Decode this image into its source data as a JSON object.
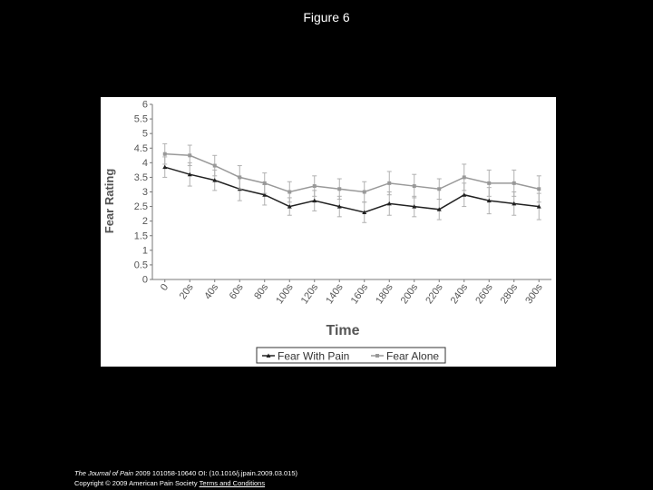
{
  "figure_title": "Figure 6",
  "chart_data": {
    "type": "line",
    "xlabel": "Time",
    "ylabel": "Fear Rating",
    "ylim": [
      0,
      6
    ],
    "yticks": [
      "0",
      "0.5",
      "1",
      "1.5",
      "2",
      "2.5",
      "3",
      "3.5",
      "4",
      "4.5",
      "5",
      "5.5",
      "6"
    ],
    "categories": [
      "0",
      "20s",
      "40s",
      "60s",
      "80s",
      "100s",
      "120s",
      "140s",
      "160s",
      "180s",
      "200s",
      "220s",
      "240s",
      "260s",
      "280s",
      "300s"
    ],
    "grid": false,
    "legend_position": "bottom",
    "series": [
      {
        "name": "Fear With Pain",
        "color": "#222222",
        "marker": "triangle",
        "values": [
          3.85,
          3.6,
          3.4,
          3.1,
          2.9,
          2.5,
          2.7,
          2.5,
          2.3,
          2.6,
          2.5,
          2.4,
          2.9,
          2.7,
          2.6,
          2.5
        ],
        "errors": [
          0.35,
          0.4,
          0.35,
          0.4,
          0.35,
          0.3,
          0.35,
          0.35,
          0.35,
          0.4,
          0.35,
          0.35,
          0.4,
          0.45,
          0.4,
          0.45
        ]
      },
      {
        "name": "Fear Alone",
        "color": "#999999",
        "marker": "square",
        "values": [
          4.3,
          4.25,
          3.9,
          3.5,
          3.3,
          3.0,
          3.2,
          3.1,
          3.0,
          3.3,
          3.2,
          3.1,
          3.5,
          3.3,
          3.3,
          3.1
        ],
        "errors": [
          0.35,
          0.35,
          0.35,
          0.4,
          0.35,
          0.35,
          0.35,
          0.35,
          0.35,
          0.4,
          0.4,
          0.35,
          0.45,
          0.45,
          0.45,
          0.45
        ]
      }
    ]
  },
  "footer": {
    "journal": "The Journal of Pain",
    "citation": " 2009 101058-10640 OI: (10.1016/j.jpain.2009.03.015) ",
    "copyright": "Copyright © 2009 American Pain Society",
    "terms_link": "Terms and Conditions"
  }
}
